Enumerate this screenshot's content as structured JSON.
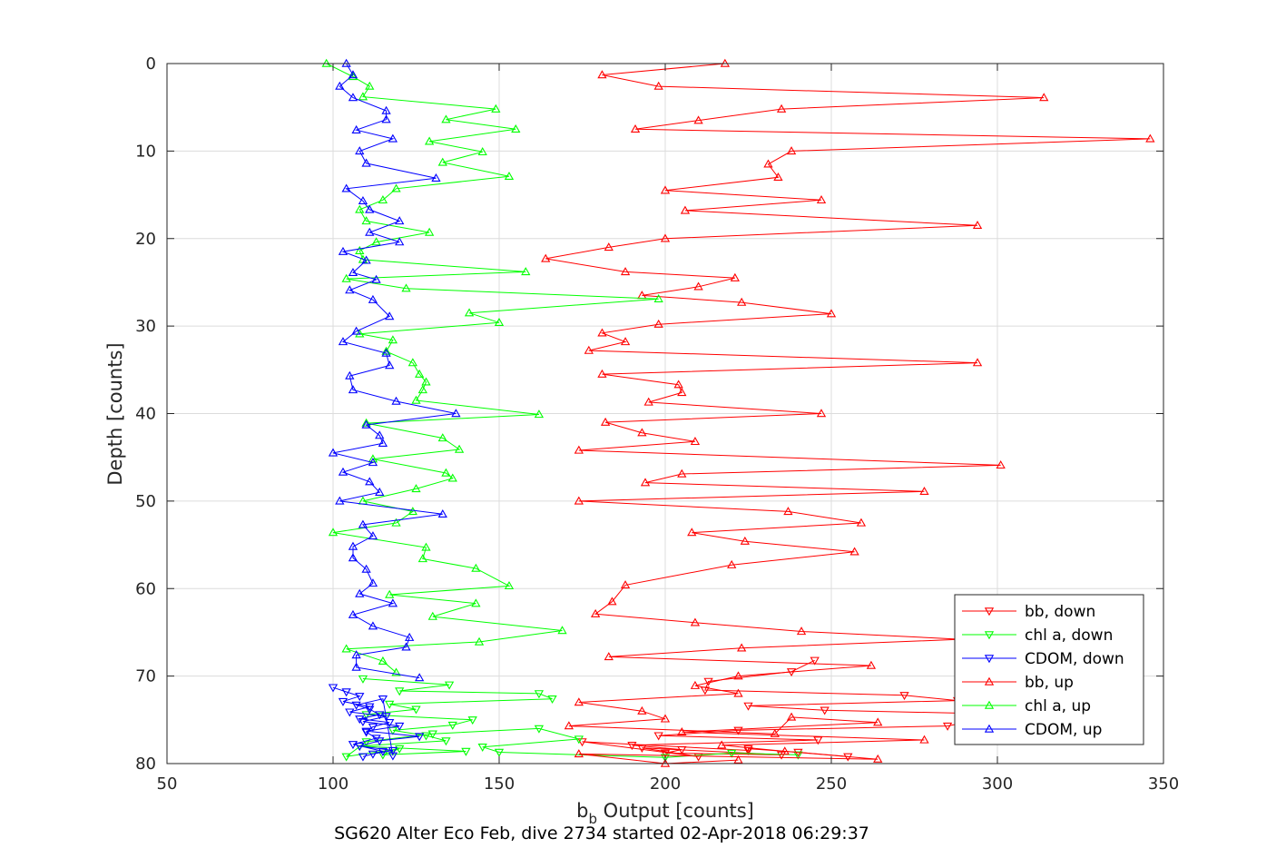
{
  "chart_data": {
    "type": "line",
    "title": "SG620 Alter Eco Feb, dive 2734 started 02-Apr-2018 06:29:37",
    "xlabel_main": "b",
    "xlabel_sub": "b",
    "xlabel_rest": " Output [counts]",
    "ylabel": "Depth [counts]",
    "xlim": [
      50,
      350
    ],
    "ylim": [
      0,
      80
    ],
    "y_reversed": true,
    "grid": true,
    "legend_position": "bottom-right",
    "xticks": [
      "50",
      "100",
      "150",
      "200",
      "250",
      "300",
      "350"
    ],
    "yticks": [
      "0",
      "10",
      "20",
      "30",
      "40",
      "50",
      "60",
      "70",
      "80"
    ],
    "series": [
      {
        "name": "bb, down",
        "color": "#ff0000",
        "marker": "triangle-down",
        "x": [
          245,
          238,
          213,
          212,
          272,
          288,
          225,
          248,
          320,
          293,
          285,
          222,
          198,
          246,
          190,
          205,
          200,
          235,
          193,
          210,
          175,
          225,
          225,
          240,
          255
        ],
        "y": [
          68.2,
          69.5,
          70.6,
          71.6,
          72.2,
          72.8,
          73.4,
          73.9,
          74.5,
          75.1,
          75.7,
          76.2,
          76.8,
          77.3,
          77.9,
          78.4,
          78.8,
          79.0,
          78.2,
          79.2,
          77.5,
          78.5,
          78.3,
          78.7,
          79.2
        ]
      },
      {
        "name": "chl a, down",
        "color": "#00ff00",
        "marker": "triangle-down",
        "x": [
          109,
          135,
          120,
          162,
          166,
          117,
          125,
          110,
          142,
          136,
          118,
          128,
          134,
          108,
          140,
          115,
          120,
          104,
          110,
          130,
          162,
          174,
          145,
          150,
          200,
          220,
          240
        ],
        "y": [
          70.3,
          71.0,
          71.7,
          72.0,
          72.6,
          73.2,
          73.8,
          74.4,
          75.0,
          75.6,
          76.2,
          76.8,
          77.4,
          78.0,
          78.6,
          79.0,
          78.3,
          79.2,
          77.5,
          76.6,
          76.0,
          77.2,
          78.1,
          78.7,
          79.3,
          78.8,
          79.0
        ]
      },
      {
        "name": "CDOM, down",
        "color": "#0000ff",
        "marker": "triangle-down",
        "x": [
          100,
          104,
          108,
          103,
          111,
          105,
          116,
          109,
          120,
          110,
          126,
          114,
          108,
          118,
          112,
          109,
          115,
          106,
          113,
          110,
          112,
          117,
          108,
          114,
          111,
          107,
          115,
          118
        ],
        "y": [
          71.3,
          71.8,
          72.3,
          72.9,
          73.5,
          74.1,
          74.6,
          75.2,
          75.7,
          76.3,
          76.9,
          77.4,
          78.0,
          78.5,
          78.9,
          79.2,
          78.6,
          77.8,
          77.1,
          76.4,
          75.8,
          75.3,
          74.9,
          74.4,
          73.8,
          73.3,
          72.6,
          79.1
        ]
      },
      {
        "name": "bb, up",
        "color": "#ff0000",
        "marker": "triangle-up",
        "x": [
          218,
          181,
          198,
          314,
          235,
          210,
          191,
          346,
          238,
          231,
          234,
          200,
          247,
          206,
          294,
          200,
          183,
          164,
          188,
          221,
          210,
          193,
          223,
          250,
          198,
          181,
          188,
          177,
          294,
          181,
          204,
          205,
          195,
          247,
          182,
          193,
          209,
          174,
          301,
          205,
          194,
          278,
          174,
          237,
          259,
          208,
          224,
          257,
          220,
          188,
          184,
          179,
          209,
          241,
          289,
          223,
          183,
          262,
          222,
          209,
          222,
          174,
          193,
          200,
          171,
          233,
          238,
          264,
          205,
          278,
          217,
          236,
          264,
          174,
          200,
          222
        ],
        "y": [
          0,
          1.3,
          2.6,
          3.9,
          5.2,
          6.5,
          7.5,
          8.6,
          10,
          11.5,
          13,
          14.5,
          15.6,
          16.8,
          18.5,
          20,
          21,
          22.3,
          23.8,
          24.5,
          25.5,
          26.5,
          27.3,
          28.6,
          29.8,
          30.8,
          31.8,
          32.8,
          34.2,
          35.5,
          36.7,
          37.6,
          38.7,
          40,
          41,
          42.2,
          43.2,
          44.2,
          45.9,
          46.9,
          47.9,
          48.9,
          50,
          51.2,
          52.5,
          53.6,
          54.6,
          55.8,
          57.3,
          59.6,
          61.5,
          62.9,
          63.9,
          64.9,
          65.8,
          66.8,
          67.8,
          68.8,
          70,
          71.1,
          72,
          73,
          74,
          74.9,
          75.7,
          76.6,
          74.7,
          75.3,
          76.4,
          77.3,
          77.9,
          78.6,
          79.5,
          78.9,
          80,
          79.6
        ]
      },
      {
        "name": "chl a, up",
        "color": "#00ff00",
        "marker": "triangle-up",
        "x": [
          98,
          106,
          111,
          109,
          149,
          134,
          155,
          129,
          145,
          133,
          153,
          119,
          115,
          108,
          110,
          129,
          113,
          108,
          109,
          158,
          104,
          122,
          198,
          141,
          150,
          108,
          118,
          116,
          124,
          126,
          128,
          127,
          125,
          162,
          110,
          133,
          138,
          112,
          134,
          136,
          125,
          109,
          124,
          119,
          100,
          128,
          127,
          143,
          153,
          117,
          143,
          130,
          169,
          144,
          104,
          115,
          119
        ],
        "y": [
          0,
          1.5,
          2.6,
          3.8,
          5.2,
          6.4,
          7.5,
          8.9,
          10.1,
          11.3,
          12.9,
          14.3,
          15.6,
          16.7,
          18,
          19.3,
          20.4,
          21.4,
          22.4,
          23.8,
          24.6,
          25.7,
          26.9,
          28.5,
          29.6,
          30.9,
          31.6,
          32.9,
          34.2,
          35.5,
          36.4,
          37.3,
          38.5,
          40.1,
          41.1,
          42.8,
          44.1,
          45.2,
          46.8,
          47.4,
          48.6,
          50,
          51.2,
          52.5,
          53.6,
          55.3,
          56.6,
          57.7,
          59.7,
          60.7,
          61.7,
          63.2,
          64.8,
          66.1,
          66.9,
          68.3,
          69.6
        ]
      },
      {
        "name": "CDOM, up",
        "color": "#0000ff",
        "marker": "triangle-up",
        "x": [
          104,
          106,
          102,
          106,
          116,
          116,
          107,
          118,
          108,
          110,
          131,
          104,
          109,
          111,
          120,
          111,
          120,
          103,
          110,
          106,
          113,
          105,
          112,
          117,
          107,
          103,
          116,
          117,
          105,
          106,
          119,
          137,
          110,
          114,
          115,
          100,
          112,
          103,
          111,
          114,
          102,
          133,
          109,
          112,
          106,
          106,
          110,
          112,
          108,
          118,
          106,
          112,
          123,
          122,
          107,
          107,
          126
        ],
        "y": [
          0,
          1.3,
          2.6,
          3.9,
          5.4,
          6.4,
          7.6,
          8.6,
          10,
          11.4,
          13.1,
          14.3,
          15.7,
          16.7,
          18,
          19.3,
          20.4,
          21.5,
          22.5,
          23.9,
          24.7,
          25.9,
          27,
          28.9,
          30.6,
          31.8,
          33.1,
          34.5,
          35.7,
          37.3,
          38.6,
          40,
          41.3,
          42.5,
          43.4,
          44.5,
          45.6,
          46.7,
          47.8,
          49,
          50,
          51.5,
          52.7,
          54,
          55.2,
          56.5,
          57.8,
          59.4,
          60.6,
          61.7,
          63,
          64.3,
          65.6,
          66.7,
          67.6,
          69,
          70.2
        ]
      }
    ]
  }
}
